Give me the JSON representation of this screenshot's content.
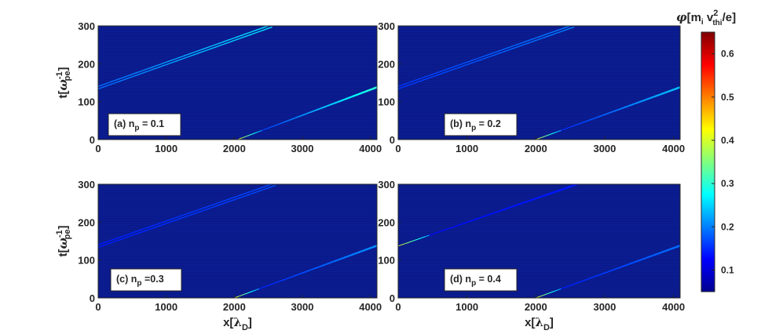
{
  "chart_data": [
    {
      "type": "heatmap",
      "panel_label": {
        "prefix": "(a) n",
        "sub": "p",
        "suffix": " = 0.1"
      },
      "xlim": [
        0,
        4096
      ],
      "ylim": [
        0,
        300
      ],
      "xticks": [
        "0",
        "1000",
        "2000",
        "3000",
        "4000"
      ],
      "yticks": [
        "0",
        "100",
        "200",
        "300"
      ],
      "ylabel": {
        "main": "t[",
        "greek": "ω",
        "sup": "-1",
        "sub": "pe",
        "close": "]"
      },
      "xlabel": null,
      "streaks": [
        {
          "x0": 0,
          "t0": 137,
          "x1": 2550,
          "t1": 300,
          "peak": 0.26,
          "double": true
        },
        {
          "x0": 2050,
          "t0": 0,
          "x1": 4096,
          "t1": 138,
          "peak": 0.3,
          "double": false
        }
      ]
    },
    {
      "type": "heatmap",
      "panel_label": {
        "prefix": "(b) n",
        "sub": "p",
        "suffix": " = 0.2"
      },
      "xlim": [
        0,
        4096
      ],
      "ylim": [
        0,
        300
      ],
      "xticks": [
        "0",
        "1000",
        "2000",
        "3000",
        "4000"
      ],
      "yticks": [
        "0",
        "100",
        "200",
        "300"
      ],
      "ylabel": null,
      "xlabel": null,
      "streaks": [
        {
          "x0": 0,
          "t0": 137,
          "x1": 2550,
          "t1": 300,
          "peak": 0.2,
          "double": true
        },
        {
          "x0": 2000,
          "t0": 0,
          "x1": 4096,
          "t1": 138,
          "peak": 0.24,
          "double": false
        }
      ]
    },
    {
      "type": "heatmap",
      "panel_label": {
        "prefix": "(c) n",
        "sub": "p",
        "suffix": " =0.3"
      },
      "xlim": [
        0,
        4096
      ],
      "ylim": [
        0,
        300
      ],
      "xticks": [
        "0",
        "1000",
        "2000",
        "3000",
        "4000"
      ],
      "yticks": [
        "0",
        "100",
        "200",
        "300"
      ],
      "ylabel": {
        "main": "t[",
        "greek": "ω",
        "sup": "-1",
        "sub": "pe",
        "close": "]"
      },
      "xlabel": {
        "main": "x[",
        "greek": "λ",
        "sub": "D",
        "close": "]"
      },
      "streaks": [
        {
          "x0": 0,
          "t0": 137,
          "x1": 2600,
          "t1": 300,
          "peak": 0.17,
          "double": true
        },
        {
          "x0": 2000,
          "t0": 0,
          "x1": 4096,
          "t1": 138,
          "peak": 0.21,
          "double": false
        }
      ]
    },
    {
      "type": "heatmap",
      "panel_label": {
        "prefix": "(d) n",
        "sub": "p",
        "suffix": " = 0.4"
      },
      "xlim": [
        0,
        4096
      ],
      "ylim": [
        0,
        300
      ],
      "xticks": [
        "0",
        "1000",
        "2000",
        "3000",
        "4000"
      ],
      "yticks": [
        "0",
        "100",
        "200",
        "300"
      ],
      "ylabel": null,
      "xlabel": {
        "main": "x[",
        "greek": "λ",
        "sub": "D",
        "close": "]"
      },
      "streaks": [
        {
          "x0": 0,
          "t0": 137,
          "x1": 2600,
          "t1": 300,
          "peak": 0.14,
          "double": false
        },
        {
          "x0": 2000,
          "t0": 0,
          "x1": 4096,
          "t1": 138,
          "peak": 0.19,
          "double": false
        }
      ]
    }
  ],
  "colorbar": {
    "title": {
      "greek": "φ",
      "main": "[m",
      "sub1": "i",
      "mid": " v",
      "sup2": "2",
      "sub2": "thi",
      "close": "/e]"
    },
    "range": [
      0.05,
      0.65
    ],
    "ticks": [
      0.1,
      0.2,
      0.3,
      0.4,
      0.5,
      0.6
    ],
    "tick_labels": [
      "0.1",
      "0.2",
      "0.3",
      "0.4",
      "0.5",
      "0.6"
    ],
    "colormap": "jet"
  },
  "colors": {
    "background": "#0a1a8c",
    "band": "#0d2296",
    "text": "#262626"
  }
}
